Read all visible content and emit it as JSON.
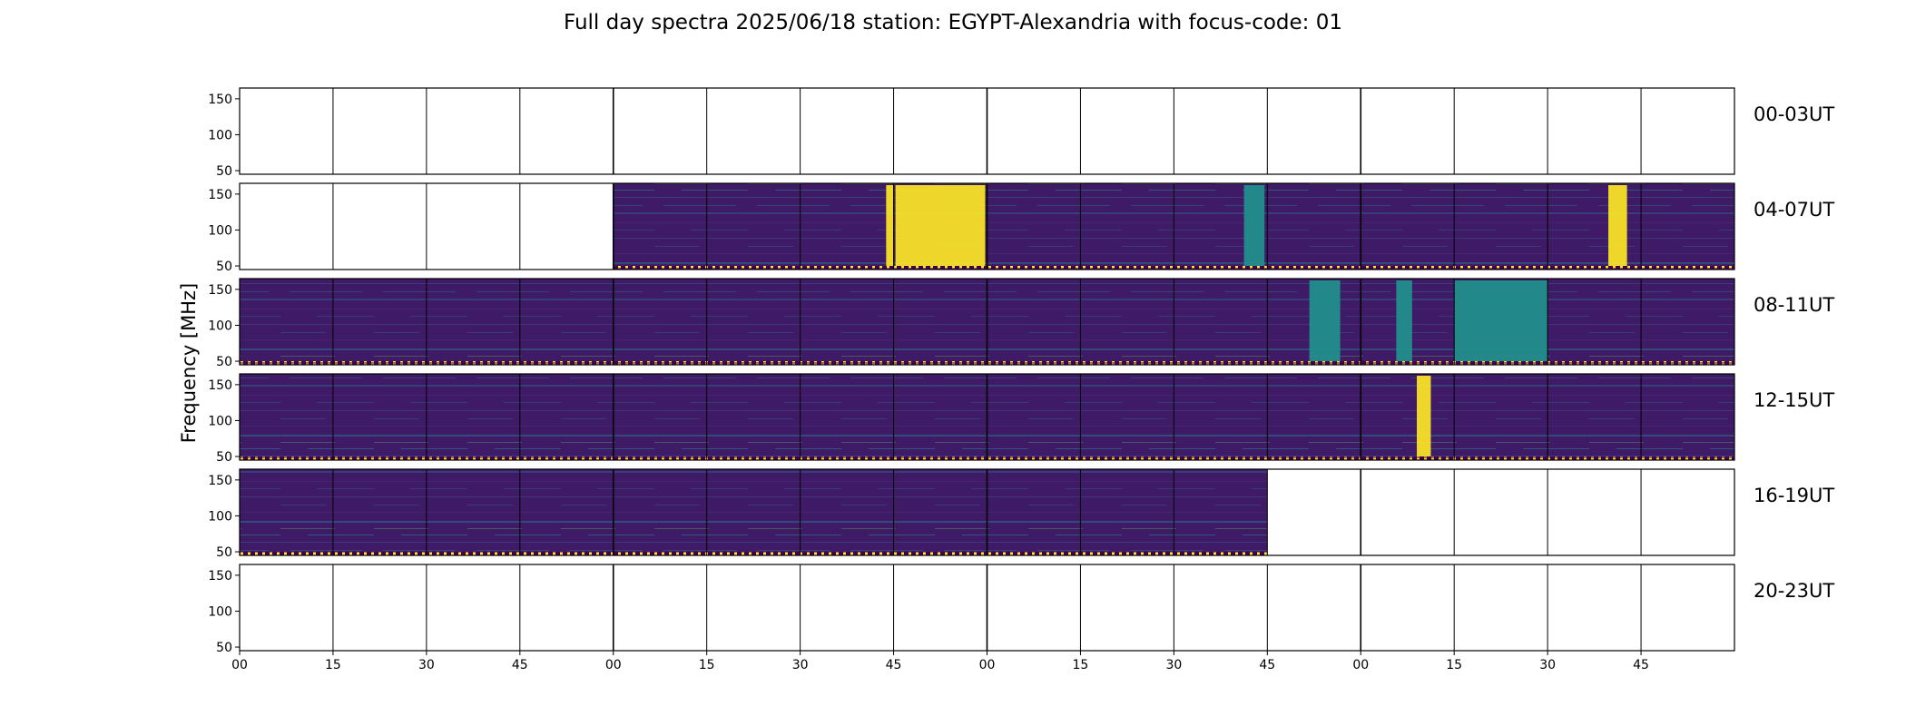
{
  "chart_data": {
    "type": "heatmap",
    "title": "Full day spectra 2025/06/18 station: EGYPT-Alexandria with focus-code: 01",
    "ylabel": "Frequency [MHz]",
    "xlabel": "",
    "colormap": "viridis",
    "colors": {
      "low": "#440154",
      "mid": "#21918c",
      "high": "#fde725",
      "axis": "#000000"
    },
    "y_ticks": [
      50,
      100,
      150
    ],
    "ylim": [
      45,
      165
    ],
    "x_tick_labels": [
      "00",
      "15",
      "30",
      "45",
      "00",
      "15",
      "30",
      "45",
      "00",
      "15",
      "30",
      "45",
      "00",
      "15",
      "30",
      "45"
    ],
    "segment_minutes": 15,
    "segments_per_row": 16,
    "rows": [
      {
        "label": "00-03UT",
        "start_hour": 0,
        "data_segments": []
      },
      {
        "label": "04-07UT",
        "start_hour": 4,
        "data_segments": [
          4,
          5,
          6,
          7,
          8,
          9,
          10,
          11,
          12,
          13,
          14,
          15
        ],
        "bursts": [
          {
            "segment": 6,
            "from": 0.92,
            "to": 1.0,
            "level": "high"
          },
          {
            "segment": 7,
            "from": 0.02,
            "to": 0.98,
            "level": "high"
          },
          {
            "segment": 10,
            "from": 0.75,
            "to": 0.97,
            "level": "mid"
          },
          {
            "segment": 14,
            "from": 0.65,
            "to": 0.85,
            "level": "high"
          }
        ]
      },
      {
        "label": "08-11UT",
        "start_hour": 8,
        "data_segments": [
          0,
          1,
          2,
          3,
          4,
          5,
          6,
          7,
          8,
          9,
          10,
          11,
          12,
          13,
          14,
          15
        ],
        "bursts": [
          {
            "segment": 11,
            "from": 0.45,
            "to": 0.78,
            "level": "mid"
          },
          {
            "segment": 12,
            "from": 0.38,
            "to": 0.55,
            "level": "mid"
          },
          {
            "segment": 13,
            "from": 0.0,
            "to": 1.0,
            "level": "mid"
          }
        ]
      },
      {
        "label": "12-15UT",
        "start_hour": 12,
        "data_segments": [
          0,
          1,
          2,
          3,
          4,
          5,
          6,
          7,
          8,
          9,
          10,
          11,
          12,
          13,
          14,
          15
        ],
        "bursts": [
          {
            "segment": 12,
            "from": 0.6,
            "to": 0.75,
            "level": "high"
          }
        ]
      },
      {
        "label": "16-19UT",
        "start_hour": 16,
        "data_segments": [
          0,
          1,
          2,
          3,
          4,
          5,
          6,
          7,
          8,
          9,
          10
        ],
        "bursts": []
      },
      {
        "label": "20-23UT",
        "start_hour": 20,
        "data_segments": []
      }
    ]
  }
}
